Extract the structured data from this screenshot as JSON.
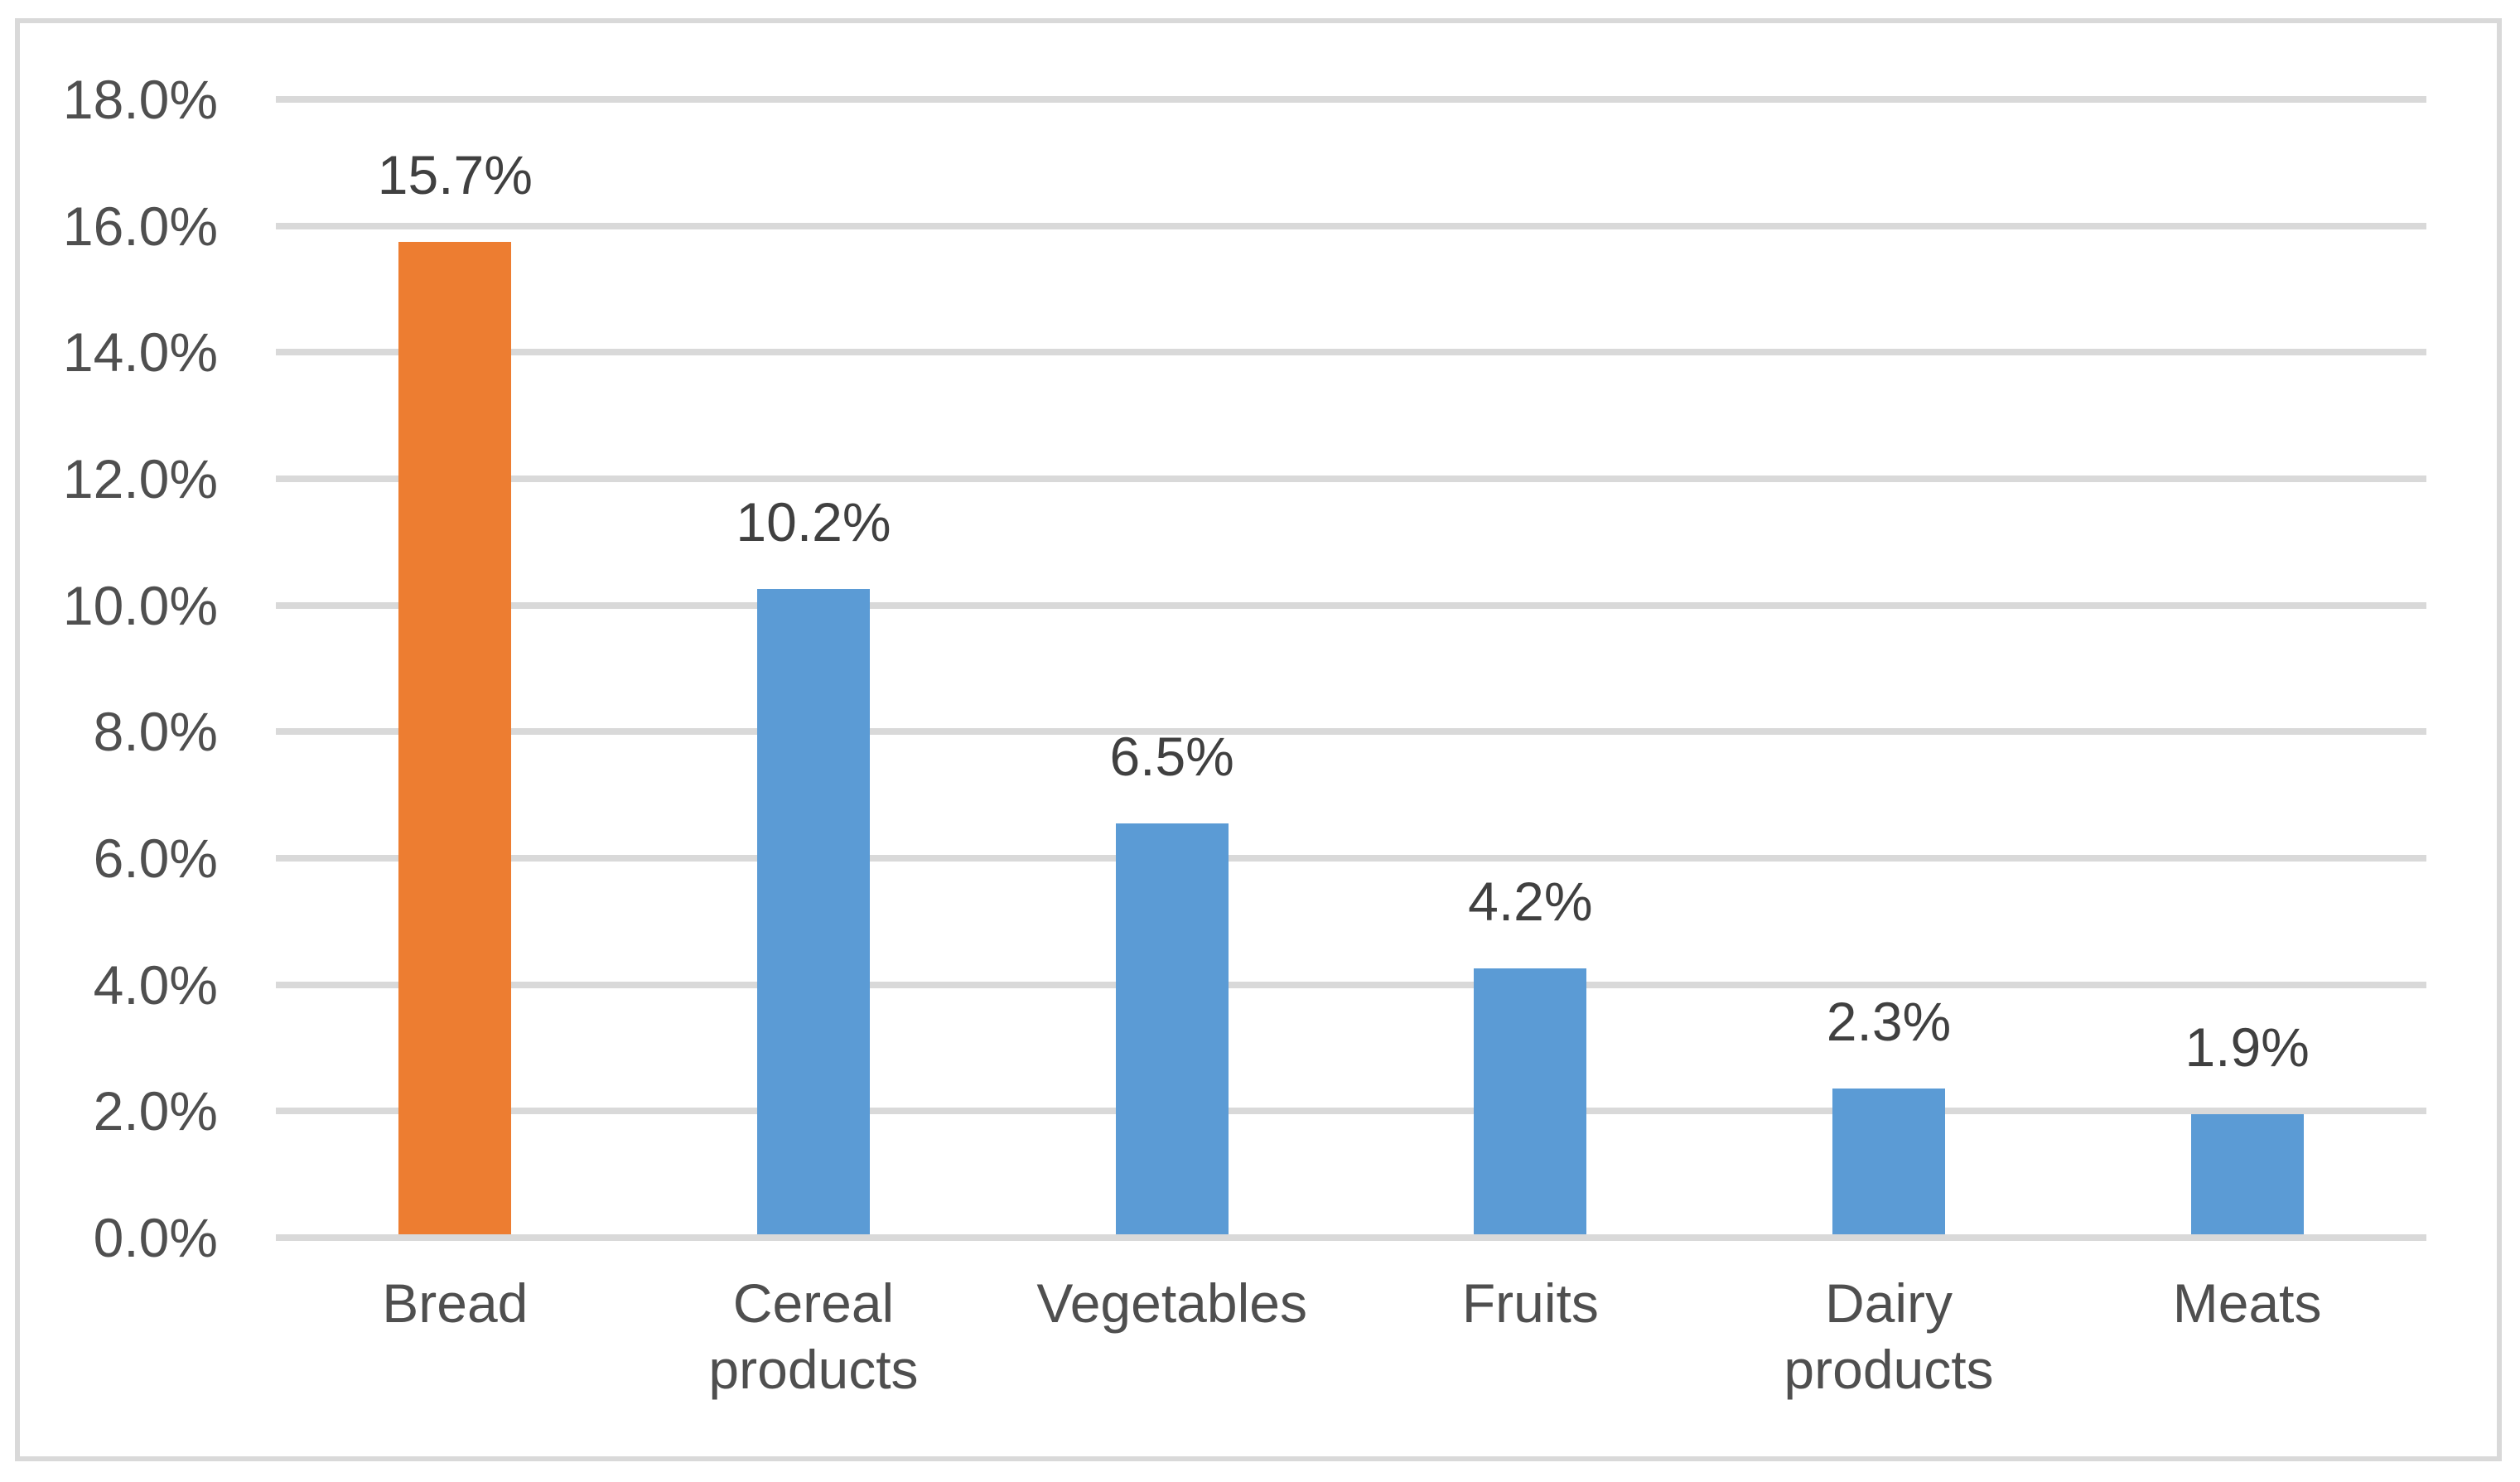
{
  "chart_data": {
    "type": "bar",
    "title": "",
    "xlabel": "",
    "ylabel": "",
    "categories": [
      "Bread",
      "Cereal products",
      "Vegetables",
      "Fruits",
      "Dairy products",
      "Meats"
    ],
    "values": [
      15.7,
      10.2,
      6.5,
      4.2,
      2.3,
      1.9
    ],
    "value_labels": [
      "15.7%",
      "10.2%",
      "6.5%",
      "4.2%",
      "2.3%",
      "1.9%"
    ],
    "ylim": [
      0,
      18
    ],
    "ytick_step": 2,
    "ytick_labels_top_to_bottom": [
      "18.0%",
      "16.0%",
      "14.0%",
      "12.0%",
      "10.0%",
      "8.0%",
      "6.0%",
      "4.0%",
      "2.0%",
      "0.0%"
    ],
    "grid": "horizontal",
    "legend_position": "none",
    "highlight_category": "Bread",
    "colors": {
      "highlight_bar": "#ED7D31",
      "default_bar": "#5B9BD5",
      "gridline": "#D9D9D9",
      "frame_border": "#D9D9D9",
      "axis_text": "#4F4F4F",
      "data_label_text": "#404040",
      "background": "#FFFFFF"
    }
  }
}
